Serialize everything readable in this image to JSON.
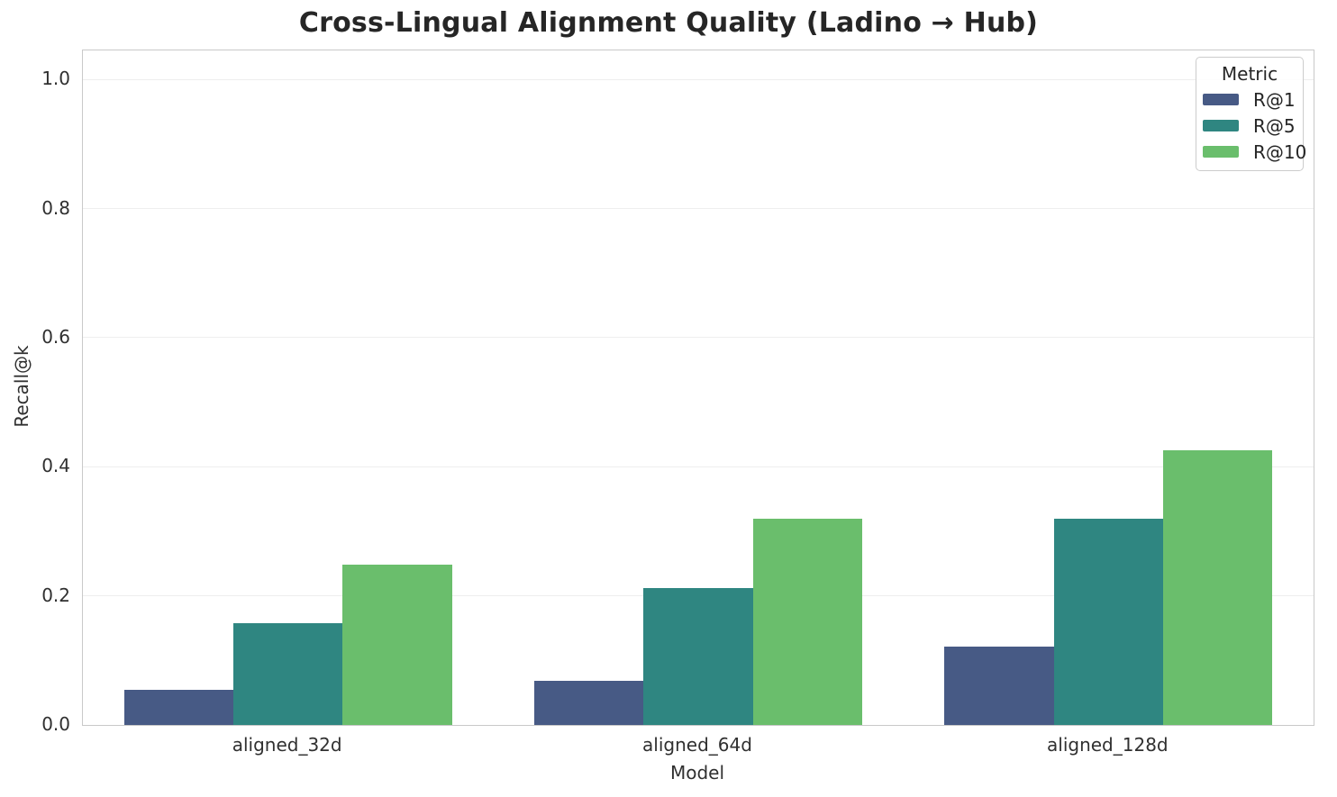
{
  "chart_data": {
    "type": "bar",
    "title": "Cross-Lingual Alignment Quality (Ladino → Hub)",
    "xlabel": "Model",
    "ylabel": "Recall@k",
    "categories": [
      "aligned_32d",
      "aligned_64d",
      "aligned_128d"
    ],
    "series": [
      {
        "name": "R@1",
        "color": "#475a85",
        "values": [
          0.055,
          0.068,
          0.122
        ]
      },
      {
        "name": "R@5",
        "color": "#2f8681",
        "values": [
          0.158,
          0.212,
          0.32
        ]
      },
      {
        "name": "R@10",
        "color": "#6abe6c",
        "values": [
          0.248,
          0.32,
          0.425
        ]
      }
    ],
    "yticks": [
      "0.0",
      "0.2",
      "0.4",
      "0.6",
      "0.8",
      "1.0"
    ],
    "ylim": [
      0,
      1.045
    ],
    "legend_title": "Metric",
    "legend_position": "upper right",
    "grid": "horizontal",
    "colors": {
      "grid": "#eeeeee",
      "spine": "#c9c9c9",
      "text": "#303030",
      "background": "#ffffff"
    }
  }
}
